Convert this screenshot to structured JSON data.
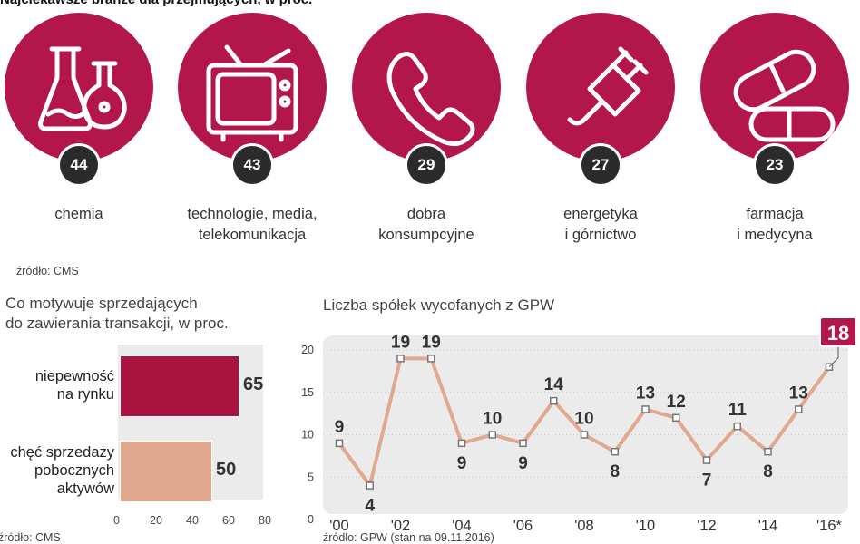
{
  "header": {
    "title": "Najciekawsze branże dla przejmujących, w proc."
  },
  "industries": [
    {
      "value": "44",
      "label": "chemia",
      "icon": "flask-icon"
    },
    {
      "value": "43",
      "label": "technologie, media,\ntelekomunikacja",
      "icon": "tv-icon"
    },
    {
      "value": "29",
      "label": "dobra\nkonsumpcyjne",
      "icon": "phone-icon"
    },
    {
      "value": "27",
      "label": "energetyka\ni górnictwo",
      "icon": "plug-icon"
    },
    {
      "value": "23",
      "label": "farmacja\ni medycyna",
      "icon": "pill-icon"
    }
  ],
  "source_top": "źródło: CMS",
  "colors": {
    "accent": "#b3164a",
    "dark_bar": "#a8143f",
    "light_bar": "#e0a88f",
    "line": "#e0a88f",
    "panel": "#ebebeb"
  },
  "chart_data": [
    {
      "type": "bar",
      "title": "Co motywuje sprzedających\ndo zawierania transakcji, w proc.",
      "categories": [
        "niepewność\nna rynku",
        "chęć sprzedaży\npobocznych\naktywów"
      ],
      "values": [
        65,
        50
      ],
      "value_labels": [
        "65",
        "50"
      ],
      "xlim": [
        0,
        80
      ],
      "xticks": [
        "0",
        "20",
        "40",
        "60",
        "80"
      ],
      "source": "źródło: CMS"
    },
    {
      "type": "line",
      "title": "Liczba spółek wycofanych z GPW",
      "x": [
        "2000",
        "2001",
        "2002",
        "2003",
        "2004",
        "2005",
        "2006",
        "2007",
        "2008",
        "2009",
        "2010",
        "2011",
        "2012",
        "2013",
        "2014",
        "2015",
        "2016"
      ],
      "values": [
        9,
        4,
        19,
        19,
        9,
        10,
        9,
        14,
        10,
        8,
        13,
        12,
        7,
        11,
        8,
        13,
        18
      ],
      "value_labels": [
        "9",
        "4",
        "19",
        "19",
        "9",
        "10",
        "9",
        "14",
        "10",
        "8",
        "13",
        "12",
        "7",
        "11",
        "8",
        "13",
        "18"
      ],
      "xtick_labels": [
        "'00",
        "'02",
        "'04",
        "'06",
        "'08",
        "'10",
        "'12",
        "'14",
        "'16*"
      ],
      "yticks": [
        "0",
        "5",
        "10",
        "15",
        "20"
      ],
      "ylim": [
        0,
        20
      ],
      "source": "źródło: GPW (stan na 09.11.2016)"
    }
  ]
}
